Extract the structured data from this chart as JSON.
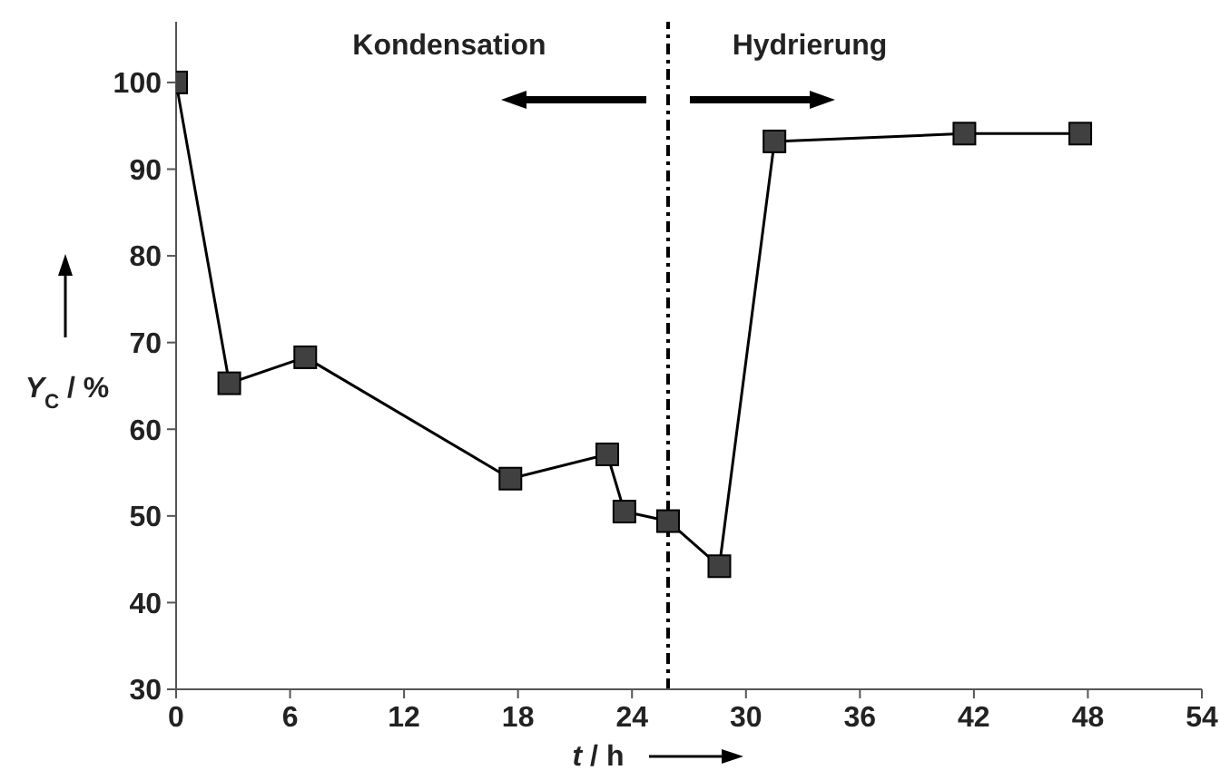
{
  "chart_data": {
    "type": "line",
    "x": [
      0,
      2.8,
      6.8,
      17.6,
      22.7,
      23.6,
      25.9,
      28.6,
      31.5,
      41.5,
      47.6
    ],
    "series": [
      {
        "color": "#404040",
        "values": [
          100,
          65.3,
          68.3,
          54.3,
          57.1,
          50.5,
          49.4,
          44.2,
          93.2,
          94.1,
          94.1
        ]
      }
    ],
    "xlabel": "t / h",
    "ylabel": "Y$_{C}$ / %",
    "xlim": [
      0,
      54
    ],
    "xticks": [
      0,
      6,
      12,
      18,
      24,
      30,
      36,
      42,
      48,
      54
    ],
    "ylim": [
      30,
      107
    ],
    "yticks": [
      30,
      40,
      50,
      60,
      70,
      80,
      90,
      100
    ],
    "annotations": [
      "Kondensation",
      "Hydrierung"
    ],
    "ref_lines": [
      {
        "axis": "x",
        "value": 25.9,
        "line_style": "dashdot",
        "color": "#000000"
      }
    ],
    "marker": "square",
    "grid": false,
    "legend": false
  }
}
